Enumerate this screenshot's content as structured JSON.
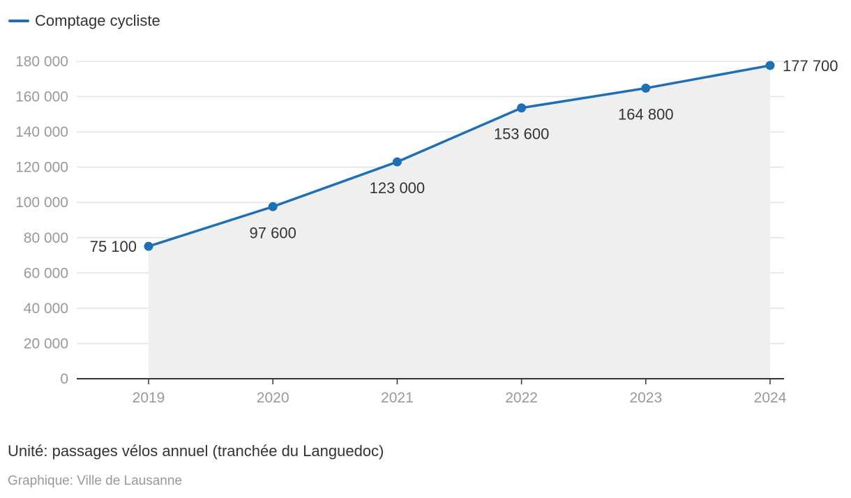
{
  "legend": {
    "label": "Comptage cycliste"
  },
  "colors": {
    "line": "#1f6fb5",
    "area": "#efefef",
    "grid": "#e3e3e3",
    "axis": "#333333",
    "tick_text": "#999999",
    "label_text": "#333333"
  },
  "chart_data": {
    "type": "area",
    "categories": [
      "2019",
      "2020",
      "2021",
      "2022",
      "2023",
      "2024"
    ],
    "series": [
      {
        "name": "Comptage cycliste",
        "values": [
          75100,
          97600,
          123000,
          153600,
          164800,
          177700
        ]
      }
    ],
    "data_labels": [
      "75 100",
      "97 600",
      "123 000",
      "153 600",
      "164 800",
      "177 700"
    ],
    "y_ticks": [
      0,
      20000,
      40000,
      60000,
      80000,
      100000,
      120000,
      140000,
      160000,
      180000
    ],
    "y_tick_labels": [
      "0",
      "20 000",
      "40 000",
      "60 000",
      "80 000",
      "100 000",
      "120 000",
      "140 000",
      "160 000",
      "180 000"
    ],
    "ylim": [
      0,
      180000
    ],
    "grid": true,
    "legend_position": "top-left"
  },
  "notes": {
    "unit": "Unité: passages vélos annuel (tranchée du Languedoc)",
    "source": "Graphique: Ville de Lausanne"
  }
}
